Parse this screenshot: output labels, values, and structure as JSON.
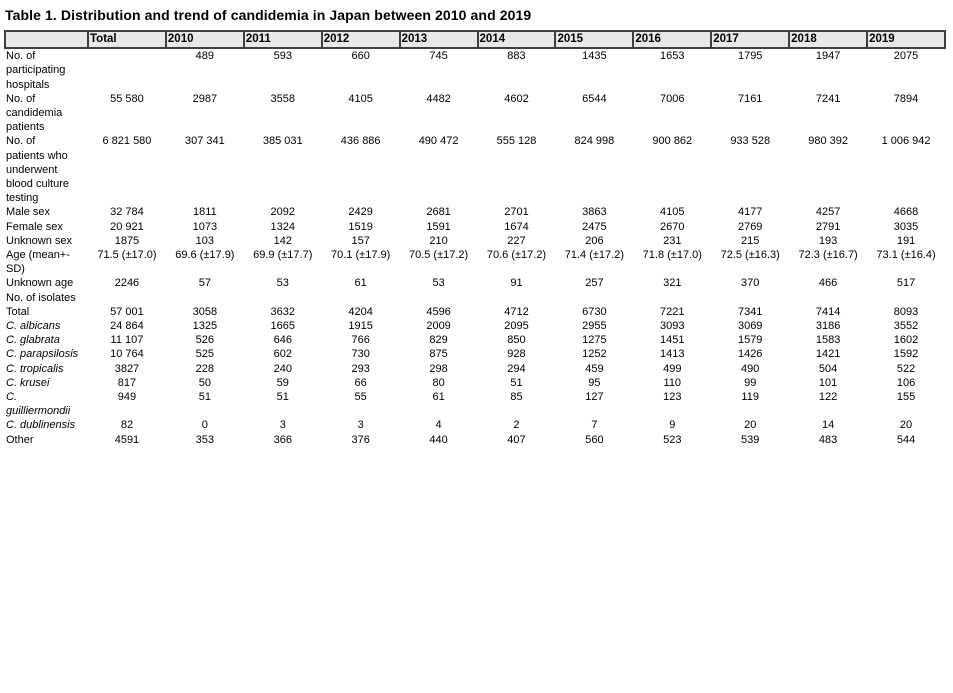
{
  "title": "Table 1. Distribution and trend of candidemia in Japan between 2010 and 2019",
  "table": {
    "columns": [
      "",
      "Total",
      "2010",
      "2011",
      "2012",
      "2013",
      "2014",
      "2015",
      "2016",
      "2017",
      "2018",
      "2019"
    ],
    "rows": [
      {
        "label": "No. of\nparticipating\nhospitals",
        "italic": false,
        "values": [
          "",
          "489",
          "593",
          "660",
          "745",
          "883",
          "1435",
          "1653",
          "1795",
          "1947",
          "2075"
        ]
      },
      {
        "label": "No. of\ncandidemia\npatients",
        "italic": false,
        "values": [
          "55 580",
          "2987",
          "3558",
          "4105",
          "4482",
          "4602",
          "6544",
          "7006",
          "7161",
          "7241",
          "7894"
        ]
      },
      {
        "label": "No. of\npatients who\nunderwent\nblood culture\ntesting",
        "italic": false,
        "values": [
          "6 821 580",
          "307 341",
          "385 031",
          "436 886",
          "490 472",
          "555 128",
          "824 998",
          "900 862",
          "933 528",
          "980 392",
          "1 006 942"
        ]
      },
      {
        "label": "Male sex",
        "italic": false,
        "values": [
          "32 784",
          "1811",
          "2092",
          "2429",
          "2681",
          "2701",
          "3863",
          "4105",
          "4177",
          "4257",
          "4668"
        ]
      },
      {
        "label": "Female sex",
        "italic": false,
        "values": [
          "20 921",
          "1073",
          "1324",
          "1519",
          "1591",
          "1674",
          "2475",
          "2670",
          "2769",
          "2791",
          "3035"
        ]
      },
      {
        "label": "Unknown sex",
        "italic": false,
        "values": [
          "1875",
          "103",
          "142",
          "157",
          "210",
          "227",
          "206",
          "231",
          "215",
          "193",
          "191"
        ]
      },
      {
        "label": "Age (mean+-\nSD)",
        "italic": false,
        "values": [
          "71.5 (±17.0)",
          "69.6 (±17.9)",
          "69.9 (±17.7)",
          "70.1 (±17.9)",
          "70.5 (±17.2)",
          "70.6 (±17.2)",
          "71.4 (±17.2)",
          "71.8 (±17.0)",
          "72.5 (±16.3)",
          "72.3 (±16.7)",
          "73.1 (±16.4)"
        ]
      },
      {
        "label": "Unknown age",
        "italic": false,
        "values": [
          "2246",
          "57",
          "53",
          "61",
          "53",
          "91",
          "257",
          "321",
          "370",
          "466",
          "517"
        ]
      },
      {
        "label": "No. of isolates",
        "italic": false,
        "values": [
          "",
          "",
          "",
          "",
          "",
          "",
          "",
          "",
          "",
          "",
          ""
        ]
      },
      {
        "label": "Total",
        "italic": false,
        "values": [
          "57 001",
          "3058",
          "3632",
          "4204",
          "4596",
          "4712",
          "6730",
          "7221",
          "7341",
          "7414",
          "8093"
        ]
      },
      {
        "label": "C. albicans",
        "italic": true,
        "values": [
          "24 864",
          "1325",
          "1665",
          "1915",
          "2009",
          "2095",
          "2955",
          "3093",
          "3069",
          "3186",
          "3552"
        ]
      },
      {
        "label": "C. glabrata",
        "italic": true,
        "values": [
          "11 107",
          "526",
          "646",
          "766",
          "829",
          "850",
          "1275",
          "1451",
          "1579",
          "1583",
          "1602"
        ]
      },
      {
        "label": "C. parapsilosis",
        "italic": true,
        "values": [
          "10 764",
          "525",
          "602",
          "730",
          "875",
          "928",
          "1252",
          "1413",
          "1426",
          "1421",
          "1592"
        ]
      },
      {
        "label": "C. tropicalis",
        "italic": true,
        "values": [
          "3827",
          "228",
          "240",
          "293",
          "298",
          "294",
          "459",
          "499",
          "490",
          "504",
          "522"
        ]
      },
      {
        "label": "C. krusei",
        "italic": true,
        "values": [
          "817",
          "50",
          "59",
          "66",
          "80",
          "51",
          "95",
          "110",
          "99",
          "101",
          "106"
        ]
      },
      {
        "label": "C.\nguilliermondii",
        "italic": true,
        "values": [
          "949",
          "51",
          "51",
          "55",
          "61",
          "85",
          "127",
          "123",
          "119",
          "122",
          "155"
        ]
      },
      {
        "label": "C. dublinensis",
        "italic": true,
        "values": [
          "82",
          "0",
          "3",
          "3",
          "4",
          "2",
          "7",
          "9",
          "20",
          "14",
          "20"
        ]
      },
      {
        "label": "Other",
        "italic": false,
        "values": [
          "4591",
          "353",
          "366",
          "376",
          "440",
          "407",
          "560",
          "523",
          "539",
          "483",
          "544"
        ]
      }
    ]
  }
}
